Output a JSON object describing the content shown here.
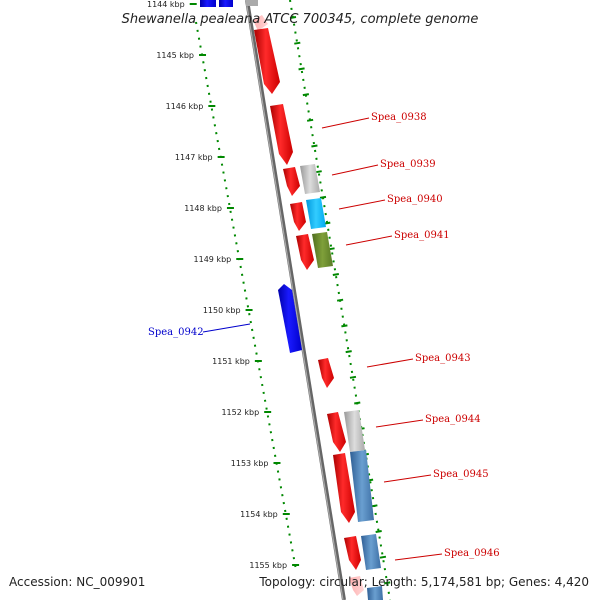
{
  "title": "Shewanella pealeana ATCC 700345, complete genome",
  "accession": "Accession: NC_009901",
  "topology": "Topology: circular; Length: 5,174,581 bp; Genes: 4,420",
  "ticks": [
    "1144 kbp",
    "1145 kbp",
    "1146 kbp",
    "1147 kbp",
    "1148 kbp",
    "1149 kbp",
    "1150 kbp",
    "1151 kbp",
    "1152 kbp",
    "1153 kbp",
    "1154 kbp",
    "1155 kbp"
  ],
  "gene_labels": [
    "Spea_0938",
    "Spea_0939",
    "Spea_0940",
    "Spea_0941",
    "Spea_0942",
    "Spea_0943",
    "Spea_0944",
    "Spea_0945",
    "Spea_0946"
  ],
  "colors": {
    "forward_gene": "#ff0000",
    "reverse_gene": "#0000ff",
    "label_red": "#cc0000",
    "label_blue": "#0000cc",
    "tick_green": "#008800",
    "backbone": "#777777",
    "cog_gray": "#bbbbbb",
    "cog_cyan": "#00bbff",
    "cog_olive": "#66882a",
    "cog_steel": "#4a7fb5"
  }
}
